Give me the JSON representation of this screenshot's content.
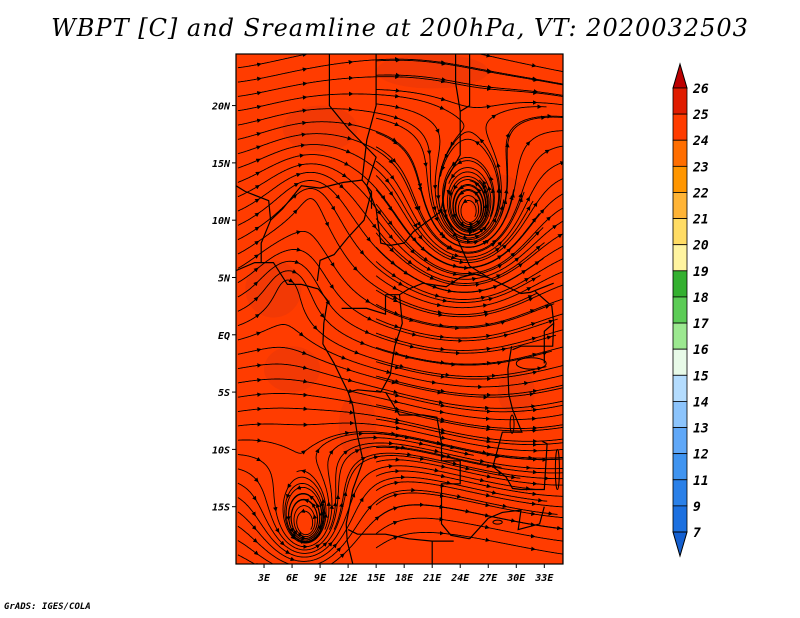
{
  "title": "WBPT [C] and Sreamline at 200hPa, VT: 2020032503",
  "footer": "GrADS: IGES/COLA",
  "map": {
    "field": "WBPT [C]",
    "level": "200hPa",
    "overlay": "Streamline",
    "valid_time": "2020032503",
    "lon_range": [
      0,
      35
    ],
    "lat_range": [
      -20,
      24.5
    ],
    "lon_ticks": [
      "3E",
      "6E",
      "9E",
      "12E",
      "15E",
      "18E",
      "21E",
      "24E",
      "27E",
      "30E",
      "33E"
    ],
    "lat_ticks": [
      "20N",
      "15N",
      "10N",
      "5N",
      "EQ",
      "5S",
      "10S",
      "15S"
    ],
    "lon_tick_values": [
      3,
      6,
      9,
      12,
      15,
      18,
      21,
      24,
      27,
      30,
      33
    ],
    "lat_tick_values": [
      20,
      15,
      10,
      5,
      0,
      -5,
      -10,
      -15
    ],
    "background_color": "#ff3c00",
    "line_color": "#000000",
    "features": [
      "cyclonic vortex near 25E 10N",
      "cyclonic vortex near 8E 17S",
      "country borders",
      "coastlines"
    ]
  },
  "colorbar": {
    "levels": [
      "7",
      "9",
      "11",
      "12",
      "13",
      "14",
      "15",
      "16",
      "17",
      "18",
      "19",
      "20",
      "21",
      "22",
      "23",
      "24",
      "25",
      "26"
    ],
    "colors": [
      "#1560d0",
      "#1c70e0",
      "#2a80e8",
      "#4094f0",
      "#60a8f8",
      "#8cc4fc",
      "#b4dcfe",
      "#e8fae8",
      "#9ce890",
      "#5ccc56",
      "#34b030",
      "#fff4a0",
      "#ffdc64",
      "#ffb436",
      "#ff9600",
      "#ff6e00",
      "#ff3c00",
      "#e01c00",
      "#bc0000"
    ]
  }
}
